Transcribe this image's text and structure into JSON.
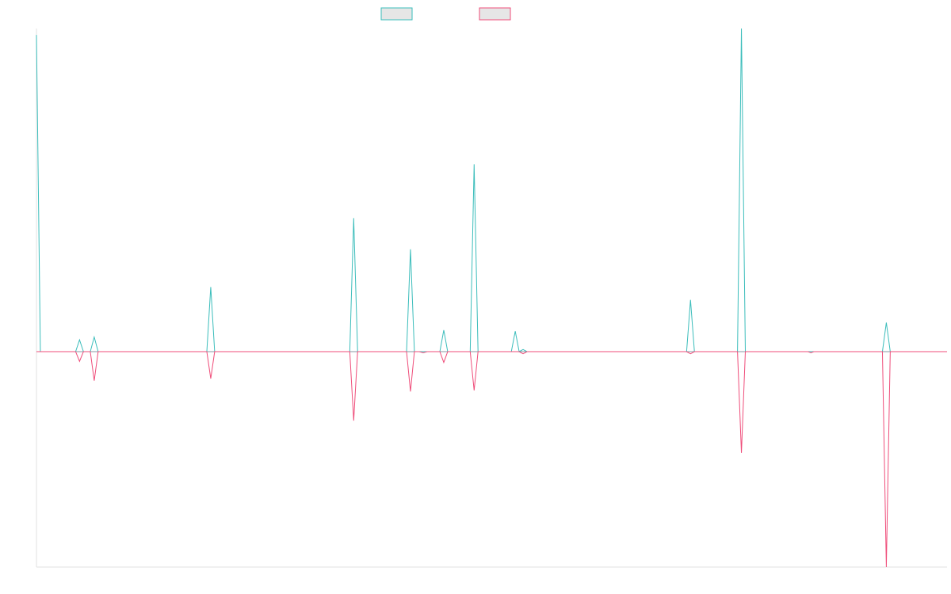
{
  "chart_data": {
    "type": "line",
    "title": "",
    "xlabel": "",
    "ylabel": "",
    "legend": "top-center",
    "grid": false,
    "ylim": [
      -1.0,
      1.5
    ],
    "xlim": [
      0,
      93
    ],
    "x": [
      0,
      0.4,
      4,
      4.4,
      4.8,
      5.5,
      5.9,
      6.3,
      17.4,
      17.8,
      18.2,
      32,
      32.4,
      32.8,
      37.8,
      38.2,
      38.6,
      39.1,
      39.5,
      39.9,
      41.2,
      41.6,
      42,
      44.3,
      44.7,
      45.1,
      48.5,
      48.9,
      49.3,
      49.7,
      50.1,
      66.4,
      66.8,
      67.2,
      71.6,
      72,
      72.4,
      78.8,
      79.1,
      79.4,
      86.4,
      86.8,
      87.2,
      93
    ],
    "series": [
      {
        "color": "#3bbdbb",
        "values": [
          1.47,
          0,
          0,
          0.055,
          0,
          0,
          0.068,
          0,
          0,
          0.3,
          0,
          0,
          0.62,
          0,
          0,
          0.475,
          0,
          0,
          0,
          0,
          0,
          0.1,
          0,
          0,
          0.87,
          0,
          0,
          0.095,
          0,
          0.01,
          0,
          0,
          0.24,
          0,
          0,
          1.5,
          0,
          0,
          0,
          0,
          0,
          0.135,
          0,
          0
        ]
      },
      {
        "color": "#ef4d7a",
        "values": [
          0,
          0,
          0,
          -0.045,
          0,
          0,
          -0.135,
          0,
          0,
          -0.125,
          0,
          0,
          -0.32,
          0,
          0,
          -0.185,
          0,
          0,
          -0.005,
          0,
          0,
          -0.05,
          0,
          0,
          -0.18,
          0,
          0,
          0,
          0,
          -0.01,
          0,
          0,
          -0.01,
          0,
          0,
          -0.47,
          0,
          0,
          -0.005,
          0,
          0,
          -1.0,
          0,
          0
        ]
      }
    ]
  }
}
